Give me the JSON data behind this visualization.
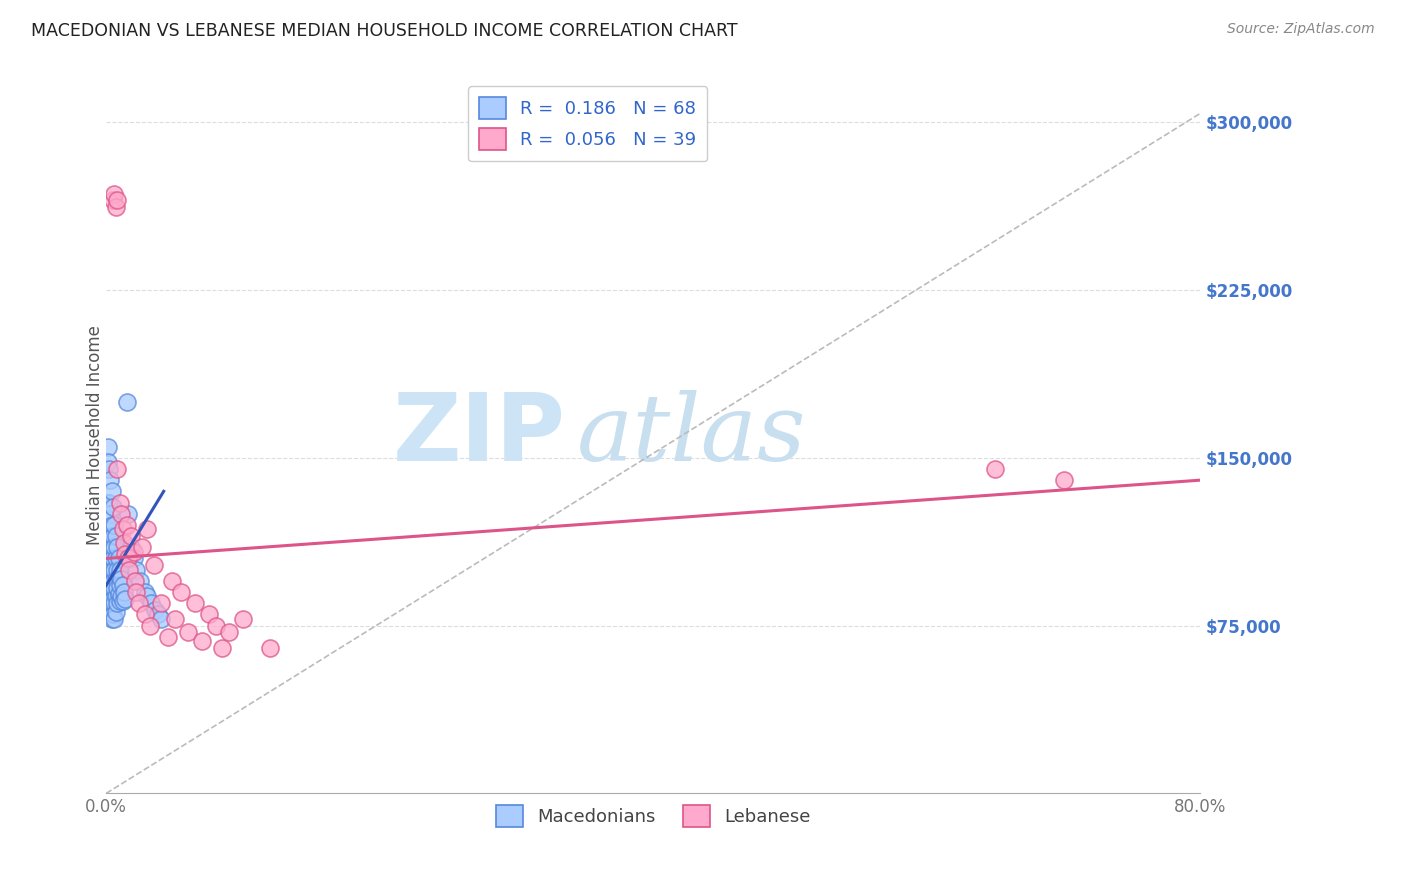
{
  "title": "MACEDONIAN VS LEBANESE MEDIAN HOUSEHOLD INCOME CORRELATION CHART",
  "source": "Source: ZipAtlas.com",
  "ylabel": "Median Household Income",
  "ytick_labels": [
    "$75,000",
    "$150,000",
    "$225,000",
    "$300,000"
  ],
  "ytick_values": [
    75000,
    150000,
    225000,
    300000
  ],
  "ymin": 0,
  "ymax": 320000,
  "xmin": 0.0,
  "xmax": 0.8,
  "legend_mac_r": "0.186",
  "legend_mac_n": "68",
  "legend_leb_r": "0.056",
  "legend_leb_n": "39",
  "mac_color": "#aaccff",
  "leb_color": "#ffaacc",
  "mac_edge_color": "#5588dd",
  "leb_edge_color": "#dd5588",
  "mac_trend_color": "#3355bb",
  "leb_trend_color": "#dd5588",
  "dashed_line_color": "#bbbbbb",
  "watermark_zip": "ZIP",
  "watermark_atlas": "atlas",
  "watermark_color_zip": "#cce4f5",
  "watermark_color_atlas": "#c8dff0",
  "background_color": "#ffffff",
  "grid_color": "#dddddd",
  "mac_x": [
    0.001,
    0.001,
    0.001,
    0.001,
    0.002,
    0.002,
    0.002,
    0.002,
    0.002,
    0.003,
    0.003,
    0.003,
    0.003,
    0.003,
    0.003,
    0.003,
    0.004,
    0.004,
    0.004,
    0.004,
    0.004,
    0.004,
    0.004,
    0.005,
    0.005,
    0.005,
    0.005,
    0.005,
    0.005,
    0.006,
    0.006,
    0.006,
    0.006,
    0.006,
    0.006,
    0.007,
    0.007,
    0.007,
    0.007,
    0.007,
    0.008,
    0.008,
    0.008,
    0.008,
    0.009,
    0.009,
    0.009,
    0.01,
    0.01,
    0.01,
    0.011,
    0.011,
    0.012,
    0.012,
    0.013,
    0.014,
    0.015,
    0.016,
    0.018,
    0.02,
    0.022,
    0.025,
    0.028,
    0.03,
    0.033,
    0.036,
    0.038,
    0.04
  ],
  "mac_y": [
    155000,
    148000,
    130000,
    110000,
    145000,
    130000,
    118000,
    108000,
    98000,
    140000,
    125000,
    115000,
    105000,
    97000,
    90000,
    83000,
    135000,
    120000,
    110000,
    100000,
    92000,
    85000,
    78000,
    128000,
    115000,
    105000,
    95000,
    87000,
    80000,
    120000,
    110000,
    100000,
    92000,
    85000,
    78000,
    115000,
    105000,
    96000,
    88000,
    81000,
    110000,
    100000,
    92000,
    85000,
    105000,
    97000,
    89000,
    100000,
    93000,
    86000,
    96000,
    88000,
    93000,
    86000,
    90000,
    87000,
    175000,
    125000,
    110000,
    105000,
    100000,
    95000,
    90000,
    88000,
    85000,
    82000,
    80000,
    78000
  ],
  "leb_x": [
    0.005,
    0.006,
    0.007,
    0.008,
    0.008,
    0.01,
    0.011,
    0.012,
    0.013,
    0.014,
    0.015,
    0.016,
    0.017,
    0.018,
    0.02,
    0.021,
    0.022,
    0.024,
    0.026,
    0.028,
    0.03,
    0.032,
    0.035,
    0.04,
    0.045,
    0.048,
    0.05,
    0.055,
    0.06,
    0.065,
    0.07,
    0.075,
    0.08,
    0.085,
    0.09,
    0.1,
    0.12,
    0.65,
    0.7
  ],
  "leb_y": [
    265000,
    268000,
    262000,
    265000,
    145000,
    130000,
    125000,
    118000,
    112000,
    107000,
    120000,
    105000,
    100000,
    115000,
    108000,
    95000,
    90000,
    85000,
    110000,
    80000,
    118000,
    75000,
    102000,
    85000,
    70000,
    95000,
    78000,
    90000,
    72000,
    85000,
    68000,
    80000,
    75000,
    65000,
    72000,
    78000,
    65000,
    145000,
    140000
  ]
}
